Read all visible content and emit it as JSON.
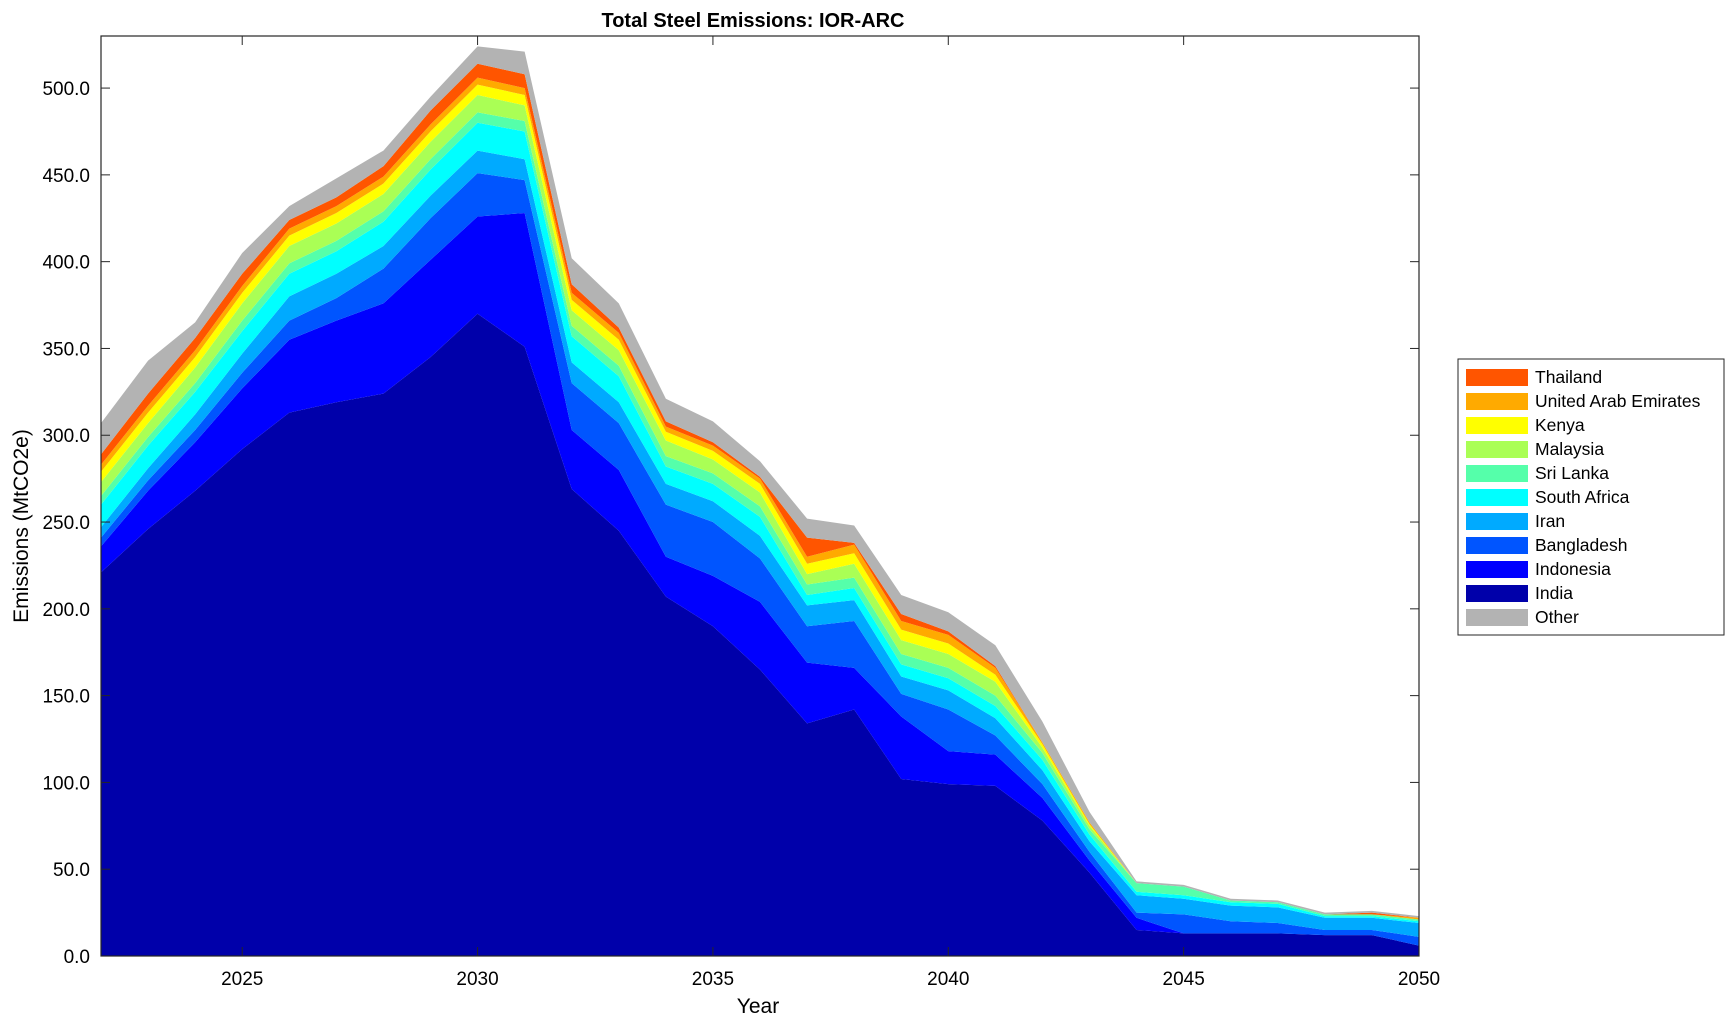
{
  "chart_data": {
    "type": "area",
    "stacked": true,
    "title": "Total Steel Emissions: IOR-ARC",
    "xlabel": "Year",
    "ylabel": "Emissions (MtCO2e)",
    "xlim": [
      2022,
      2050
    ],
    "ylim": [
      0,
      530
    ],
    "grid": false,
    "legend_position": "right",
    "x_ticks": [
      2025,
      2030,
      2035,
      2040,
      2045,
      2050
    ],
    "y_ticks": [
      0,
      50,
      100,
      150,
      200,
      250,
      300,
      350,
      400,
      450,
      500
    ],
    "y_tick_labels": [
      "0.0",
      "50.0",
      "100.0",
      "150.0",
      "200.0",
      "250.0",
      "300.0",
      "350.0",
      "400.0",
      "450.0",
      "500.0"
    ],
    "x": [
      2022,
      2023,
      2024,
      2025,
      2026,
      2027,
      2028,
      2029,
      2030,
      2031,
      2032,
      2033,
      2034,
      2035,
      2036,
      2037,
      2038,
      2039,
      2040,
      2041,
      2042,
      2043,
      2044,
      2045,
      2046,
      2047,
      2048,
      2049,
      2050
    ],
    "series": [
      {
        "name": "India",
        "color": "#0000aa",
        "values": [
          221,
          246,
          268,
          292,
          313,
          319,
          324,
          345,
          370,
          351,
          269,
          245,
          207,
          190,
          165,
          134,
          142,
          102,
          99,
          98,
          78,
          48,
          15,
          13,
          13,
          13,
          12,
          12,
          6
        ]
      },
      {
        "name": "Indonesia",
        "color": "#0000ff",
        "values": [
          15,
          22,
          28,
          35,
          42,
          47,
          52,
          56,
          56,
          77,
          34,
          35,
          23,
          29,
          39,
          35,
          24,
          36,
          19,
          18,
          13,
          7,
          7,
          0,
          0,
          0,
          0,
          0,
          0
        ]
      },
      {
        "name": "Bangladesh",
        "color": "#0055ff",
        "values": [
          5,
          6,
          7,
          9,
          11,
          13,
          20,
          24,
          25,
          19,
          27,
          27,
          30,
          31,
          25,
          21,
          27,
          13,
          24,
          11,
          8,
          5,
          3,
          11,
          7,
          6,
          3,
          3,
          5
        ]
      },
      {
        "name": "Iran",
        "color": "#00aaff",
        "values": [
          6,
          7,
          9,
          11,
          14,
          14,
          13,
          13,
          13,
          12,
          12,
          12,
          12,
          12,
          13,
          12,
          12,
          10,
          11,
          10,
          8,
          6,
          10,
          9,
          9,
          9,
          7,
          7,
          8
        ]
      },
      {
        "name": "South Africa",
        "color": "#00ffff",
        "values": [
          13,
          13,
          13,
          13,
          13,
          13,
          14,
          15,
          16,
          16,
          15,
          15,
          10,
          10,
          11,
          6,
          7,
          7,
          7,
          7,
          6,
          4,
          2,
          2,
          2,
          2,
          1,
          1,
          1
        ]
      },
      {
        "name": "Sri Lanka",
        "color": "#55ffaa",
        "values": [
          5,
          5,
          5,
          6,
          6,
          6,
          6,
          6,
          6,
          6,
          6,
          6,
          6,
          6,
          6,
          6,
          6,
          6,
          6,
          6,
          4,
          3,
          5,
          5,
          1,
          1,
          1,
          1,
          1
        ]
      },
      {
        "name": "Malaysia",
        "color": "#aaff55",
        "values": [
          8,
          8,
          9,
          10,
          10,
          10,
          10,
          10,
          10,
          9,
          9,
          9,
          9,
          8,
          8,
          6,
          8,
          8,
          8,
          8,
          3,
          2,
          0,
          0,
          0,
          0,
          0,
          0,
          0
        ]
      },
      {
        "name": "Kenya",
        "color": "#ffff00",
        "values": [
          6,
          6,
          6,
          6,
          6,
          6,
          6,
          6,
          6,
          6,
          6,
          6,
          5,
          5,
          5,
          6,
          6,
          6,
          6,
          4,
          2,
          1,
          0,
          0,
          0,
          0,
          0,
          0,
          0
        ]
      },
      {
        "name": "United Arab Emirates",
        "color": "#ffaa00",
        "values": [
          4,
          4,
          4,
          4,
          4,
          4,
          4,
          4,
          4,
          4,
          4,
          4,
          3,
          3,
          3,
          4,
          5,
          5,
          5,
          4,
          1,
          1,
          0,
          0,
          0,
          0,
          0,
          0,
          1
        ]
      },
      {
        "name": "Thailand",
        "color": "#ff5500",
        "values": [
          6,
          7,
          7,
          7,
          5,
          5,
          6,
          8,
          8,
          8,
          5,
          3,
          3,
          2,
          1,
          11,
          1,
          4,
          2,
          1,
          0,
          0,
          0,
          0,
          0,
          0,
          0,
          1,
          0
        ]
      },
      {
        "name": "Other",
        "color": "#b3b3b3",
        "values": [
          18,
          19,
          9,
          12,
          8,
          11,
          9,
          8,
          10,
          13,
          15,
          14,
          13,
          12,
          9,
          11,
          10,
          11,
          11,
          12,
          12,
          6,
          1,
          1,
          1,
          1,
          1,
          1,
          1
        ]
      }
    ],
    "legend_order": [
      "Thailand",
      "United Arab Emirates",
      "Kenya",
      "Malaysia",
      "Sri Lanka",
      "South Africa",
      "Iran",
      "Bangladesh",
      "Indonesia",
      "India",
      "Other"
    ]
  }
}
